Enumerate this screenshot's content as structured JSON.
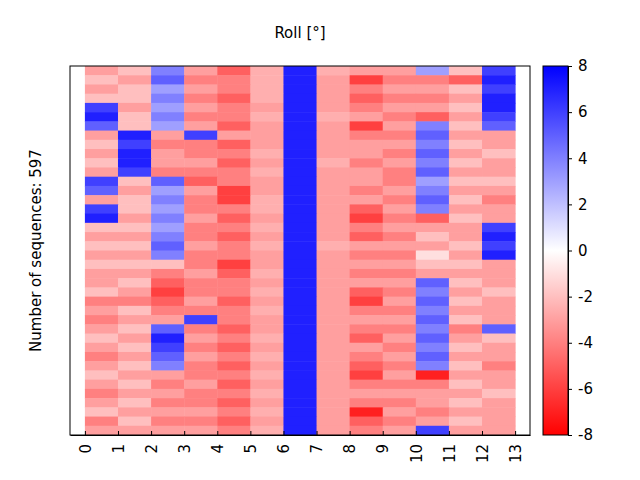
{
  "chart_data": {
    "type": "heatmap",
    "title": "Roll [°]",
    "y_label": "Number of sequences: 597",
    "x_edges": [
      0,
      1,
      2,
      3,
      4,
      5,
      6,
      7,
      8,
      9,
      10,
      11,
      12,
      13
    ],
    "xlim": [
      -0.45,
      13.45
    ],
    "xticks": [
      0,
      1,
      2,
      3,
      4,
      5,
      6,
      7,
      8,
      9,
      10,
      11,
      12,
      13
    ],
    "ylim": [
      0,
      40
    ],
    "tick_labels": "x",
    "cells": [
      [
        -3,
        -2,
        4,
        -3,
        -5,
        -2.5,
        7,
        -2.5,
        -3,
        -3,
        3,
        -2,
        6
      ],
      [
        -2,
        -3,
        5,
        -4,
        -4,
        -2.5,
        7,
        -3,
        -6,
        -4,
        -4,
        -5,
        7
      ],
      [
        -3,
        -2,
        3,
        -3,
        -4,
        -2.5,
        7,
        -3,
        -4,
        -3,
        -3,
        -2,
        6
      ],
      [
        -2,
        -2,
        4,
        -4,
        -5,
        -2.5,
        7,
        -3,
        -5,
        -4,
        -4,
        -3,
        7
      ],
      [
        6,
        -3,
        3,
        -3,
        -4,
        -3,
        7,
        -3,
        -4,
        -3,
        -3,
        -2,
        7
      ],
      [
        7,
        -2,
        4,
        -4,
        -4,
        -2.5,
        7,
        -2.5,
        -3,
        -4,
        -5,
        -3,
        6
      ],
      [
        5,
        -2,
        3,
        -3,
        -5,
        -3,
        7,
        -3,
        -6,
        -3,
        4,
        -2,
        5
      ],
      [
        -3,
        7,
        -3,
        6,
        -3,
        -3,
        7,
        -3,
        -4,
        -4,
        5,
        -3,
        -3
      ],
      [
        -2,
        6,
        -4,
        -4,
        -5,
        -3,
        7,
        -3,
        -3,
        -3,
        4,
        -2,
        -3
      ],
      [
        -3,
        7,
        -3,
        -4,
        -4,
        -2.5,
        7,
        -3,
        -3,
        -4,
        5,
        -3,
        -2
      ],
      [
        -2,
        7,
        -3,
        -3,
        -5,
        -3,
        7,
        -2.5,
        -4,
        -3,
        4,
        -2,
        -3
      ],
      [
        -3,
        6,
        -4,
        -4,
        -4,
        -2.5,
        7,
        -3,
        -3,
        -4,
        5,
        -3,
        -3
      ],
      [
        6,
        -2,
        5,
        -5,
        -4,
        -3,
        7,
        -3,
        -3,
        -4,
        3,
        -2,
        -2
      ],
      [
        5,
        -3,
        3,
        -3,
        -6,
        -3,
        7,
        -3,
        -4,
        -3,
        4,
        -3,
        -3
      ],
      [
        -3,
        -2,
        4,
        -4,
        -6,
        -2.5,
        7,
        -3,
        -3,
        -4,
        5,
        -2,
        -4
      ],
      [
        6,
        -2,
        3,
        -4,
        -4,
        -2.5,
        7,
        -3,
        -5,
        -3,
        4,
        -3,
        -3
      ],
      [
        7,
        -3,
        4,
        -3,
        -5,
        -3,
        7,
        -3,
        -6,
        -4,
        -5,
        -2,
        -3
      ],
      [
        -2,
        -2,
        3,
        -4,
        -4,
        -2.5,
        7,
        -3,
        -4,
        -3,
        -3,
        -3,
        6
      ],
      [
        -3,
        -3,
        4,
        -4,
        -5,
        -3,
        7,
        -3,
        -5,
        -4,
        -2,
        -3,
        7
      ],
      [
        -2,
        -2,
        5,
        -3,
        -4,
        -2.5,
        7,
        -2.5,
        -3,
        -3,
        -3,
        -2,
        6
      ],
      [
        -3,
        -3,
        4,
        -4,
        -4,
        -3,
        7,
        -3,
        -4,
        -4,
        -1,
        -3,
        7
      ],
      [
        -2,
        -2,
        -2,
        -4,
        -6,
        -3,
        7,
        -3,
        -3,
        -3,
        -2,
        -2,
        -3
      ],
      [
        -3,
        -3,
        -4,
        -3,
        -5,
        -2.5,
        7,
        -3,
        -4,
        -4,
        -3,
        -3,
        -3
      ],
      [
        -3,
        -2,
        -5,
        -4,
        -4,
        -3,
        7,
        -3,
        -3,
        -3,
        5,
        -2,
        -3
      ],
      [
        -2,
        -3,
        -6,
        -4,
        -4,
        -2.5,
        7,
        -3,
        -5,
        -4,
        4,
        -3,
        -2
      ],
      [
        -4,
        -4,
        -5,
        -3,
        -5,
        -3,
        7,
        -3,
        -6,
        -3,
        5,
        -2,
        -3
      ],
      [
        -3,
        -2,
        -4,
        -4,
        -4,
        -2.5,
        7,
        -3,
        -4,
        -4,
        4,
        -3,
        -3
      ],
      [
        -4,
        -3,
        -3,
        6,
        -4,
        -3,
        7,
        -3,
        -3,
        -3,
        5,
        -2,
        -3
      ],
      [
        -3,
        -2,
        5,
        -4,
        -5,
        -3,
        7,
        -3,
        -4,
        -4,
        4,
        -4,
        5
      ],
      [
        -2,
        -3,
        7,
        -3,
        -4,
        -2.5,
        7,
        -3,
        -5,
        -3,
        5,
        -3,
        -2
      ],
      [
        -3,
        -2,
        6,
        -4,
        -5,
        -3,
        7,
        -3,
        -3,
        -4,
        4,
        -2,
        -3
      ],
      [
        -4,
        -3,
        5,
        -3,
        -4,
        -2.5,
        7,
        -3,
        -4,
        -3,
        5,
        -3,
        -3
      ],
      [
        -3,
        -2,
        4,
        -4,
        -5,
        -3,
        7,
        -3,
        -5,
        -4,
        4,
        -2,
        -4
      ],
      [
        -2,
        -3,
        -3,
        -4,
        -4,
        -2.5,
        7,
        -3,
        -6,
        -3,
        -7,
        -3,
        -3
      ],
      [
        -3,
        -2,
        -4,
        -3,
        -5,
        -3,
        7,
        -3,
        -4,
        -4,
        -4,
        -2,
        -3
      ],
      [
        -4,
        -3,
        -3,
        -4,
        -4,
        -2.5,
        7,
        -3,
        -3,
        -3,
        -3,
        -3,
        -2
      ],
      [
        -3,
        -2,
        -4,
        -4,
        -5,
        -3,
        7,
        -3,
        -4,
        -4,
        -3,
        -2,
        -3
      ],
      [
        -2,
        -3,
        -3,
        -3,
        -4,
        -2.5,
        7,
        -3,
        -7,
        -3,
        -4,
        -3,
        -3
      ],
      [
        -4,
        -2,
        -4,
        -4,
        -5,
        -3,
        7,
        -3,
        -5,
        -4,
        -3,
        -2,
        -3
      ],
      [
        -3,
        -3,
        -3,
        -3,
        -4,
        -2.5,
        7,
        -3,
        -4,
        -3,
        6,
        -3,
        -3
      ]
    ],
    "colorbar": {
      "range": [
        -8,
        8
      ],
      "ticks": [
        -8,
        -6,
        -4,
        -2,
        0,
        2,
        4,
        6,
        8
      ],
      "colors": [
        "#ff0000",
        "#ffffff",
        "#0000ff"
      ]
    }
  }
}
